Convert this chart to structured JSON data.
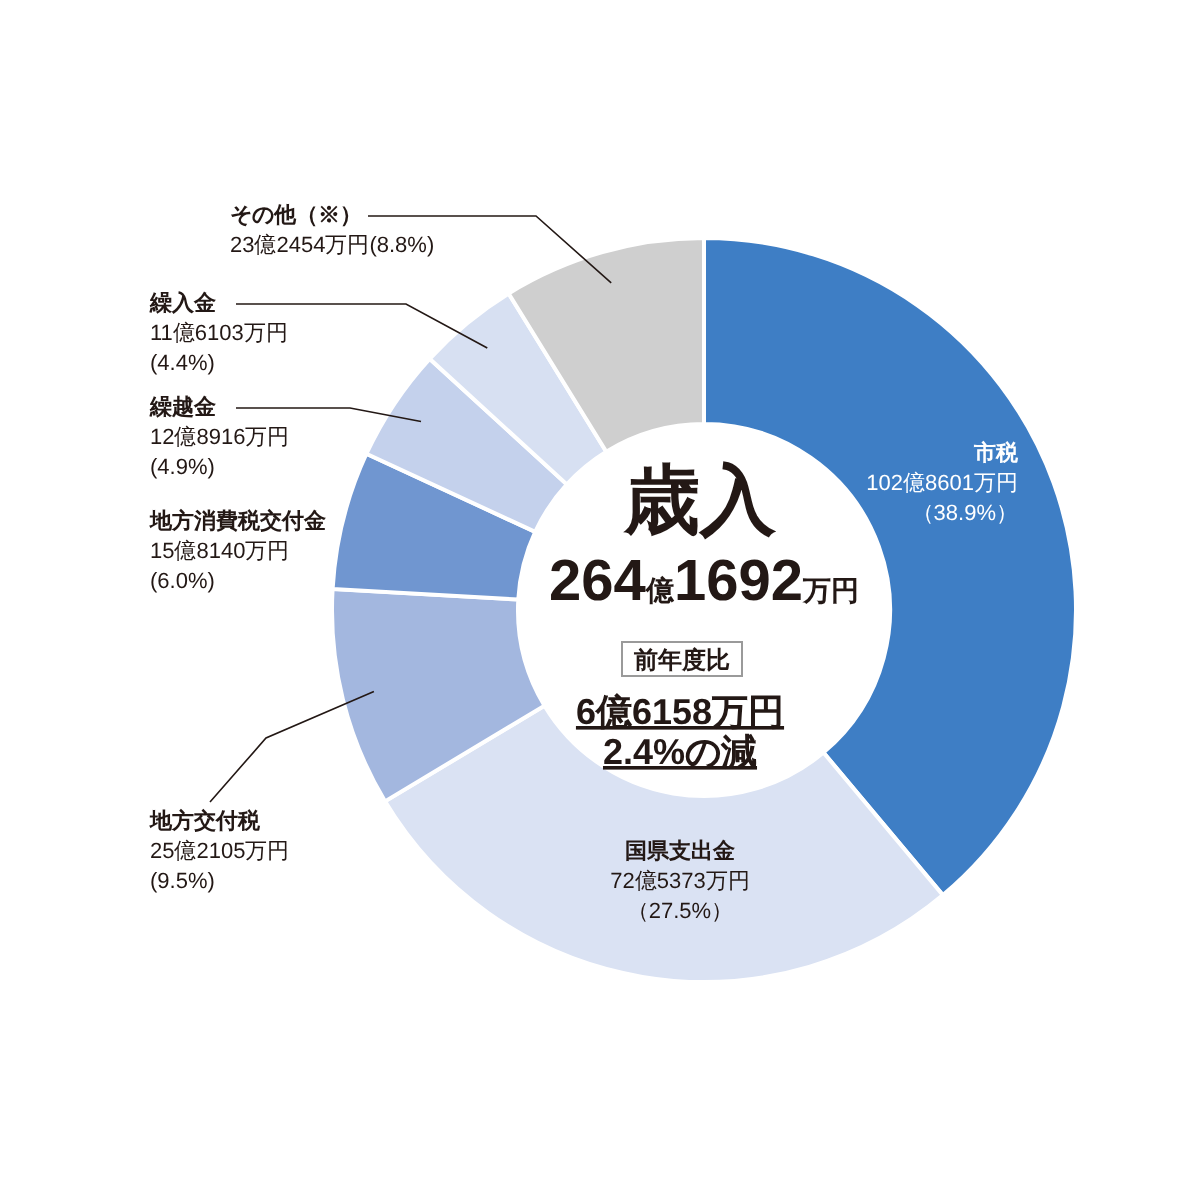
{
  "chart_data": {
    "type": "donut",
    "title": "歳入",
    "subtitle": "264億1692万円",
    "categories": [
      "市税",
      "国県支出金",
      "地方交付税",
      "地方消費税交付金",
      "繰越金",
      "繰入金",
      "その他（※）"
    ],
    "values": [
      38.9,
      27.5,
      9.5,
      6.0,
      4.9,
      4.4,
      8.8
    ],
    "colors": [
      "#3e7ec5",
      "#dae2f3",
      "#a3b7df",
      "#7096d0",
      "#c4d1ec",
      "#d7e0f2",
      "#cfcfcf"
    ],
    "value_labels": [
      "102億8601万円（38.9%）",
      "72億5373万円（27.5%）",
      "25億2105万円(9.5%)",
      "15億8140万円(6.0%)",
      "12億8916万円(4.9%)",
      "11億6103万円(4.4%)",
      "23億2454万円(8.8%)"
    ],
    "annotations": [
      "前年度比",
      "6億6158万円",
      "2.4%の減"
    ]
  }
}
